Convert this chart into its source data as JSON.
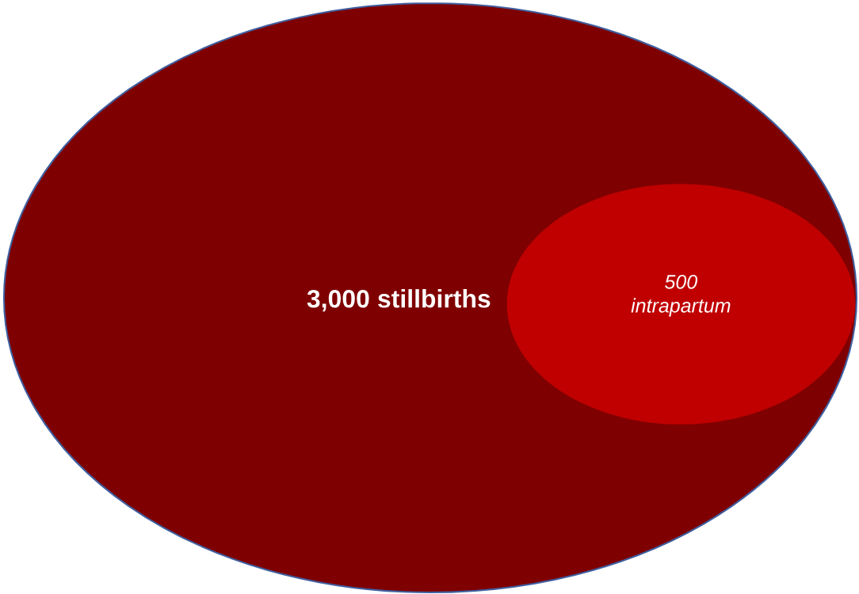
{
  "chart_data": {
    "type": "other",
    "categories": [
      "stillbirths",
      "intrapartum"
    ],
    "values": [
      3000,
      500
    ],
    "value_labels": [
      "3,000",
      "500"
    ],
    "colors": [
      "#7f0000",
      "#c00000"
    ]
  }
}
